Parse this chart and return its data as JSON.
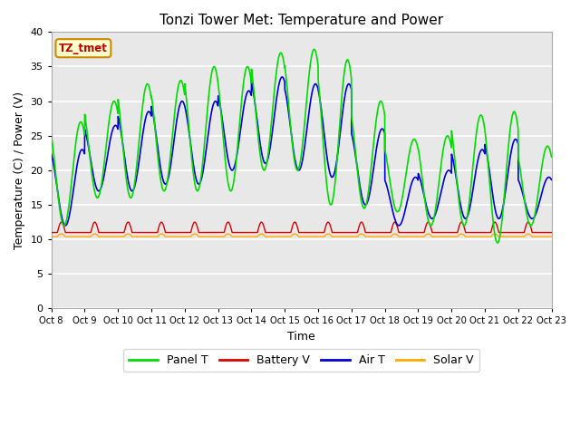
{
  "title": "Tonzi Tower Met: Temperature and Power",
  "xlabel": "Time",
  "ylabel": "Temperature (C) / Power (V)",
  "xlim": [
    0,
    15
  ],
  "ylim": [
    0,
    40
  ],
  "yticks": [
    0,
    5,
    10,
    15,
    20,
    25,
    30,
    35,
    40
  ],
  "xtick_labels": [
    "Oct 8",
    "Oct 9",
    "Oct 10",
    "Oct 11",
    "Oct 12",
    "Oct 13",
    "Oct 14",
    "Oct 15",
    "Oct 16",
    "Oct 17",
    "Oct 18",
    "Oct 19",
    "Oct 20",
    "Oct 21",
    "Oct 22",
    "Oct 23"
  ],
  "legend_labels": [
    "Panel T",
    "Battery V",
    "Air T",
    "Solar V"
  ],
  "legend_colors": [
    "#00dd00",
    "#dd0000",
    "#0000dd",
    "#ffaa00"
  ],
  "annotation_text": "TZ_tmet",
  "annotation_box_color": "#ffffcc",
  "annotation_border_color": "#cc8800",
  "bg_color": "#e8e8e8",
  "panel_color": "#00dd00",
  "battery_color": "#dd0000",
  "air_color": "#0000dd",
  "solar_color": "#ffaa00",
  "num_days": 15,
  "panel_peaks": [
    27,
    30,
    32.5,
    33,
    35,
    35,
    37,
    37.5,
    36,
    30,
    24.5,
    25,
    28,
    28.5,
    23.5
  ],
  "panel_troughs": [
    12,
    16,
    16,
    17,
    17,
    17,
    20,
    20,
    15,
    14.5,
    14,
    12,
    12,
    9.5,
    12
  ],
  "air_peaks": [
    23,
    26.5,
    28.5,
    30,
    30,
    31.5,
    33.5,
    32.5,
    32.5,
    26,
    19,
    20,
    23,
    24.5,
    19
  ],
  "air_troughs": [
    12,
    17,
    17,
    18,
    18,
    20,
    21,
    20,
    19,
    15,
    12,
    13,
    13,
    13,
    13
  ]
}
